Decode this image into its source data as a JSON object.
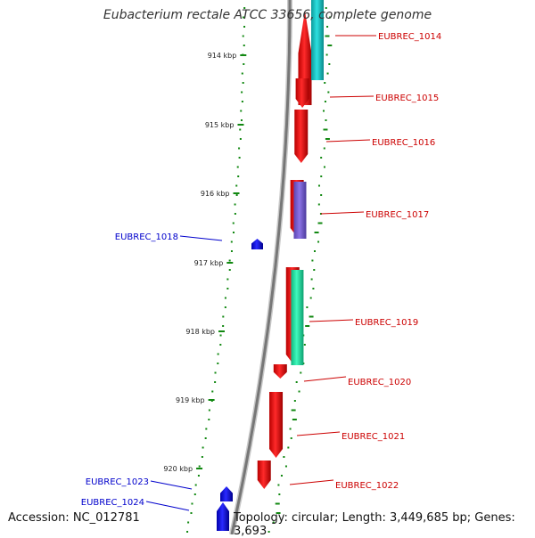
{
  "title": "Eubacterium rectale ATCC 33656, complete genome",
  "footer": {
    "accession": "Accession: NC_012781",
    "summary": "Topology: circular; Length: 3,449,685 bp; Genes: 3,693"
  },
  "colors": {
    "forward_gene": "#ff0000",
    "reverse_gene": "#0000ff",
    "label_forward": "#cc0000",
    "label_reverse": "#0000cc",
    "backbone": "#777777",
    "tick": "#118811",
    "feature_cyan": "#1ac6c6",
    "feature_purple": "#7b61d4",
    "feature_green": "#22e8a8"
  },
  "scale": {
    "ticks": [
      "914 kbp",
      "915 kbp",
      "916 kbp",
      "917 kbp",
      "918 kbp",
      "919 kbp",
      "920 kbp"
    ]
  },
  "genes": [
    {
      "label": "EUBREC_1014",
      "strand": "forward"
    },
    {
      "label": "EUBREC_1015",
      "strand": "forward"
    },
    {
      "label": "EUBREC_1016",
      "strand": "forward"
    },
    {
      "label": "EUBREC_1017",
      "strand": "forward"
    },
    {
      "label": "EUBREC_1018",
      "strand": "reverse"
    },
    {
      "label": "EUBREC_1019",
      "strand": "forward"
    },
    {
      "label": "EUBREC_1020",
      "strand": "forward"
    },
    {
      "label": "EUBREC_1021",
      "strand": "forward"
    },
    {
      "label": "EUBREC_1022",
      "strand": "forward"
    },
    {
      "label": "EUBREC_1023",
      "strand": "reverse"
    },
    {
      "label": "EUBREC_1024",
      "strand": "reverse"
    }
  ]
}
